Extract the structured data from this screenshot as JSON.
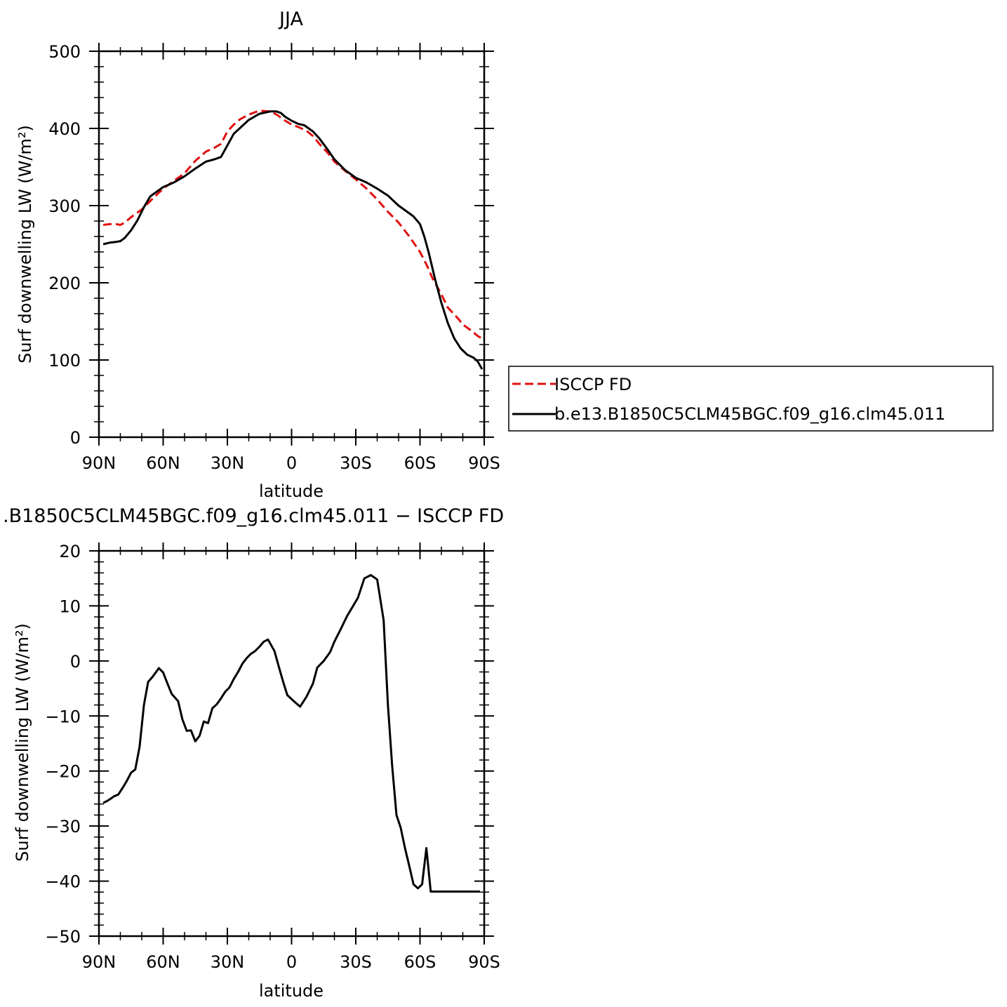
{
  "chart_data": [
    {
      "type": "line",
      "title": "JJA",
      "xlabel": "latitude",
      "ylabel": "Surf downwelling LW (W/m²)",
      "xlim": [
        90,
        -90
      ],
      "ylim": [
        0,
        500
      ],
      "xticks": [
        90,
        60,
        30,
        0,
        -30,
        -60,
        -90
      ],
      "xtick_labels": [
        "90N",
        "60N",
        "30N",
        "0",
        "30S",
        "60S",
        "90S"
      ],
      "yticks": [
        0,
        100,
        200,
        300,
        400,
        500
      ],
      "ytick_labels": [
        "0",
        "100",
        "200",
        "300",
        "400",
        "500"
      ],
      "legend_position": "right",
      "series": [
        {
          "name": "ISCCP FD",
          "color": "#e01010",
          "dash": "dashed",
          "x": [
            88,
            85,
            82,
            80,
            78,
            75,
            70,
            66,
            63,
            60,
            55,
            50,
            45,
            40,
            36,
            33,
            30,
            27,
            24,
            20,
            15,
            10,
            7,
            3,
            0,
            -3,
            -7,
            -10,
            -13,
            -17,
            -20,
            -25,
            -30,
            -35,
            -40,
            -45,
            -50,
            -55,
            -60,
            -63,
            -66,
            -70,
            -73,
            -75,
            -78,
            -80,
            -84,
            -87,
            -89
          ],
          "y": [
            275,
            276,
            276,
            275,
            278,
            285,
            295,
            306,
            314,
            322,
            332,
            342,
            358,
            370,
            375,
            380,
            396,
            405,
            412,
            418,
            423,
            422,
            418,
            410,
            405,
            402,
            397,
            390,
            380,
            368,
            357,
            345,
            334,
            322,
            308,
            292,
            278,
            260,
            240,
            224,
            205,
            185,
            168,
            162,
            153,
            146,
            138,
            131,
            128
          ]
        },
        {
          "name": "b.e13.B1850C5CLM45BGC.f09_g16.clm45.011",
          "color": "#000000",
          "dash": "solid",
          "x": [
            88,
            85,
            82,
            80,
            78,
            75,
            72,
            69,
            66,
            63,
            60,
            55,
            50,
            45,
            40,
            36,
            33,
            27,
            20,
            15,
            10,
            7,
            5,
            3,
            0,
            -3,
            -6,
            -10,
            -13,
            -17,
            -20,
            -25,
            -30,
            -35,
            -40,
            -45,
            -50,
            -55,
            -57,
            -60,
            -62,
            -64,
            -67,
            -70,
            -73,
            -76,
            -79,
            -82,
            -85,
            -87,
            -89
          ],
          "y": [
            250,
            252,
            253,
            254,
            258,
            268,
            281,
            298,
            312,
            318,
            324,
            330,
            338,
            348,
            357,
            360,
            363,
            393,
            411,
            419,
            422,
            422,
            420,
            415,
            410,
            406,
            404,
            396,
            387,
            372,
            360,
            346,
            336,
            330,
            322,
            313,
            300,
            290,
            286,
            276,
            260,
            240,
            205,
            174,
            148,
            128,
            115,
            107,
            103,
            98,
            88
          ]
        }
      ]
    },
    {
      "type": "line",
      "title": ".B1850C5CLM45BGC.f09_g16.clm45.011 − ISCCP FD",
      "xlabel": "latitude",
      "ylabel": "Surf downwelling LW (W/m²)",
      "xlim": [
        90,
        -90
      ],
      "ylim": [
        -50,
        20
      ],
      "xticks": [
        90,
        60,
        30,
        0,
        -30,
        -60,
        -90
      ],
      "xtick_labels": [
        "90N",
        "60N",
        "30N",
        "0",
        "30S",
        "60S",
        "90S"
      ],
      "yticks": [
        20,
        10,
        0,
        -10,
        -20,
        -30,
        -40,
        -50
      ],
      "ytick_labels": [
        "20",
        "10",
        "0",
        "−10",
        "−20",
        "−30",
        "−40",
        "−50"
      ],
      "series": [
        {
          "color": "#000000",
          "dash": "solid",
          "x": [
            88,
            86,
            84,
            83,
            81,
            79,
            77,
            75,
            73,
            71,
            69,
            67,
            65,
            62,
            60,
            58,
            56,
            53,
            51,
            49,
            47,
            45,
            43,
            41,
            39,
            37,
            35,
            33,
            31,
            29,
            27,
            25,
            23,
            21,
            19,
            17,
            15,
            13,
            11,
            8,
            6,
            4,
            2,
            -1,
            -4,
            -7,
            -10,
            -12,
            -15,
            -18,
            -20,
            -23,
            -26,
            -28,
            -31,
            -34,
            -37,
            -40,
            -43,
            -45,
            -47,
            -49,
            -51,
            -53,
            -55,
            -57,
            -59,
            -61,
            -63,
            -65,
            -67,
            -69,
            -71,
            -73,
            -75,
            -77,
            -79,
            -81,
            -83,
            -85,
            -86,
            -88
          ],
          "y": [
            -25.8,
            -25.4,
            -24.9,
            -24.6,
            -24.3,
            -23.1,
            -21.8,
            -20.3,
            -19.7,
            -15.6,
            -8.0,
            -3.8,
            -2.9,
            -1.3,
            -2.1,
            -4.1,
            -6.0,
            -7.3,
            -10.6,
            -12.7,
            -12.6,
            -14.6,
            -13.6,
            -11.0,
            -11.3,
            -8.6,
            -7.9,
            -6.8,
            -5.6,
            -4.8,
            -3.3,
            -2.0,
            -0.5,
            0.5,
            1.3,
            1.8,
            2.6,
            3.5,
            3.9,
            1.8,
            -1.0,
            -3.7,
            -6.2,
            -7.3,
            -8.3,
            -6.5,
            -4.1,
            -1.2,
            0.0,
            1.6,
            3.5,
            5.8,
            8.2,
            9.5,
            11.5,
            15.0,
            15.6,
            14.8,
            7.4,
            -8.0,
            -19.0,
            -28.0,
            -30.3,
            -34.0,
            -37.3,
            -40.6,
            -41.3,
            -40.6,
            -34.0,
            -41.9,
            -41.9,
            -41.9,
            -41.9,
            -41.9,
            -41.9,
            -41.9,
            -41.9,
            -41.9,
            -41.9,
            -41.9,
            -41.9,
            -41.9
          ]
        }
      ]
    }
  ]
}
